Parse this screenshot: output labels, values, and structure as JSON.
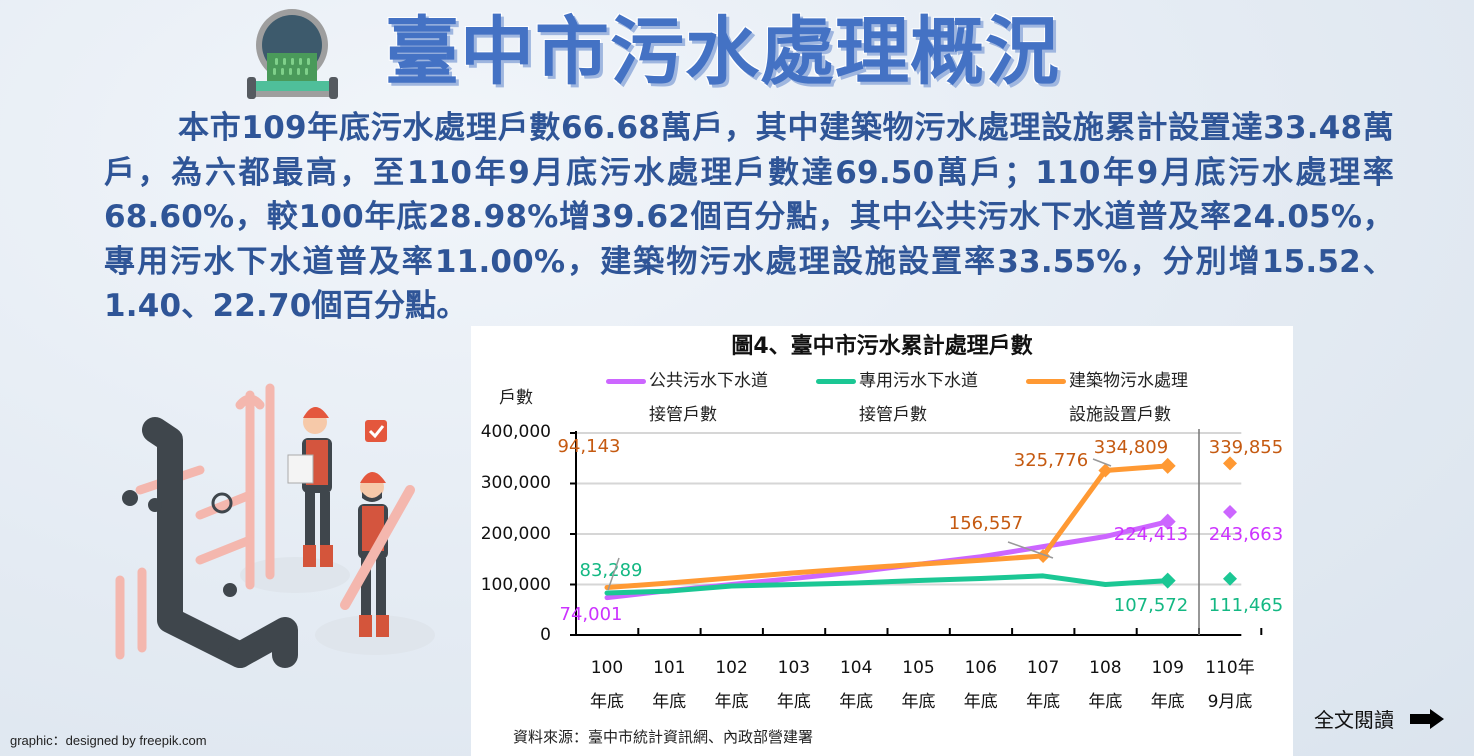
{
  "header": {
    "title": "臺中市污水處理概況",
    "icon": "sewer-pipe-icon"
  },
  "summary": {
    "text": "本市109年底污水處理戶數66.68萬戶，其中建築物污水處理設施累計設置達33.48萬戶，為六都最高，至110年9月底污水處理戶數達69.50萬戶；110年9月底污水處理率68.60%，較100年底28.98%增39.62個百分點，其中公共污水下水道普及率24.05%，專用污水下水道普及率11.00%，建築物污水處理設施設置率33.55%，分別增15.52、1.40、22.70個百分點。"
  },
  "illustration": {
    "description": "workers-with-pipes-illustration"
  },
  "chart_data": {
    "type": "line",
    "title": "圖4、臺中市污水累計處理戶數",
    "ylabel": "戶數",
    "xlabel": "",
    "ylim": [
      0,
      400000
    ],
    "yticks": [
      "400,000",
      "300,000",
      "200,000",
      "100,000",
      "0"
    ],
    "grid": true,
    "legend_position": "top",
    "categories": [
      {
        "line1": "100",
        "line2": "年底"
      },
      {
        "line1": "101",
        "line2": "年底"
      },
      {
        "line1": "102",
        "line2": "年底"
      },
      {
        "line1": "103",
        "line2": "年底"
      },
      {
        "line1": "104",
        "line2": "年底"
      },
      {
        "line1": "105",
        "line2": "年底"
      },
      {
        "line1": "106",
        "line2": "年底"
      },
      {
        "line1": "107",
        "line2": "年底"
      },
      {
        "line1": "108",
        "line2": "年底"
      },
      {
        "line1": "109",
        "line2": "年底"
      },
      {
        "line1": "110年",
        "line2": "9月底"
      }
    ],
    "series": [
      {
        "name": "公共污水下水道接管戶數",
        "legend_line1": "公共污水下水道",
        "legend_line2": "接管戶數",
        "color": "#cc66ff",
        "label_color": "#cc33ff",
        "values": [
          74001,
          88000,
          100000,
          112000,
          125000,
          140000,
          155000,
          175000,
          195000,
          224413,
          243663
        ],
        "labels": {
          "0": "74,001",
          "9": "224,413",
          "10": "243,663"
        }
      },
      {
        "name": "專用污水下水道接管戶數",
        "legend_line1": "專用污水下水道",
        "legend_line2": "接管戶數",
        "color": "#1bc794",
        "label_color": "#14b883",
        "values": [
          83289,
          87000,
          97000,
          100000,
          103000,
          108000,
          112000,
          117000,
          100000,
          107572,
          111465
        ],
        "labels": {
          "0": "83,289",
          "9": "107,572",
          "10": "111,465"
        }
      },
      {
        "name": "建築物污水處理設施設置戶數",
        "legend_line1": "建築物污水處理",
        "legend_line2": "設施設置戶數",
        "color": "#ff9933",
        "label_color": "#c55a11",
        "values": [
          94143,
          103000,
          113000,
          123000,
          132000,
          140000,
          148000,
          156557,
          325776,
          334809,
          339855
        ],
        "labels": {
          "0": "94,143",
          "7": "156,557",
          "8": "325,776",
          "9": "334,809",
          "10": "339,855"
        }
      }
    ],
    "source": "資料來源：臺中市統計資訊網、內政部營建署"
  },
  "footer": {
    "read_more_label": "全文閱讀",
    "credit": "graphic：designed by freepik.com"
  }
}
